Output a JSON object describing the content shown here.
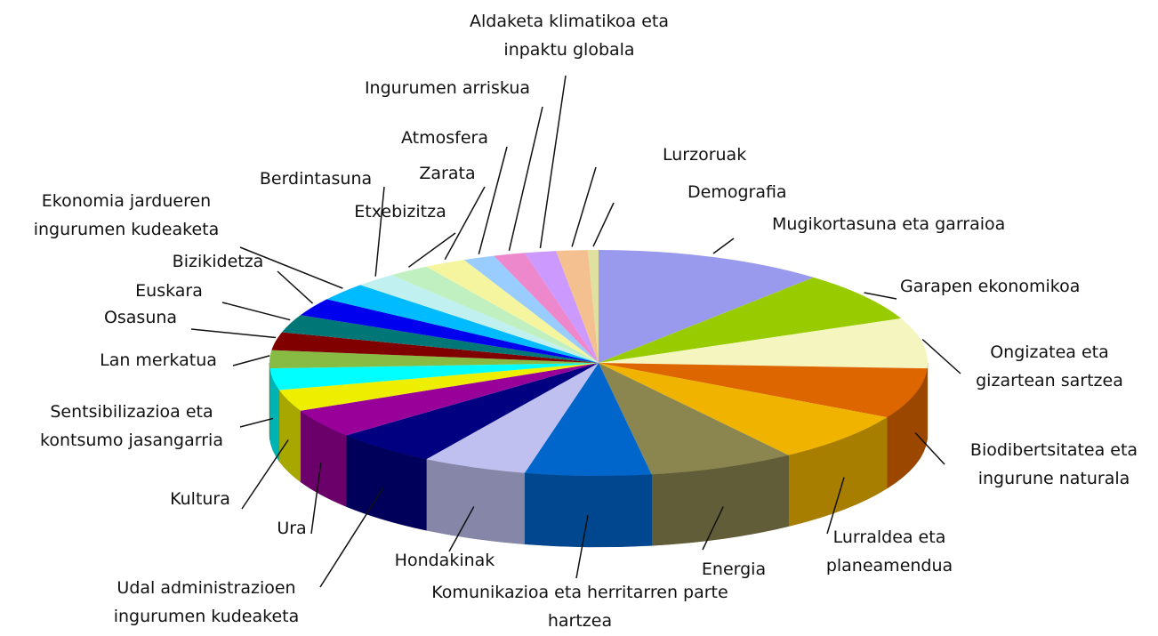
{
  "chart_data": {
    "type": "pie3d",
    "categories": [
      "Mugikortasuna eta garraioa",
      "Garapen ekonomikoa",
      "Ongizatea eta gizartean sartzea",
      "Biodibertsitatea eta ingurune naturala",
      "Lurraldea eta planeamendua",
      "Energia",
      "Komunikazioa eta herritarren parte hartzea",
      "Hondakinak",
      "Udal administrazioen ingurumen kudeaketa",
      "Ura",
      "Kultura",
      "Sentsibilizazioa eta kontsumo jasangarria",
      "Lan merkatua",
      "Osasuna",
      "Euskara",
      "Bizikidetza",
      "Ekonomia jardueren ingurumen kudeaketa",
      "Berdintasuna",
      "Etxebizitza",
      "Zarata",
      "Atmosfera",
      "Ingurumen arriskua",
      "Aldaketa klimatikoa eta inpaktu globala",
      "Lurzoruak",
      "Demografia"
    ],
    "values": [
      11,
      7,
      7,
      7,
      7,
      7,
      6,
      5,
      5,
      4,
      3,
      3,
      2.5,
      2.5,
      2.5,
      2.5,
      2.5,
      2,
      2,
      2,
      1.5,
      1.5,
      1.5,
      1.5,
      0.5
    ],
    "colors": [
      "#9999ee",
      "#99cc00",
      "#f5f5c0",
      "#dd6600",
      "#f0b400",
      "#8b8550",
      "#0066cc",
      "#c0c0f0",
      "#000080",
      "#990099",
      "#eeee00",
      "#00ffff",
      "#88bb44",
      "#800000",
      "#007777",
      "#0000ee",
      "#00bbff",
      "#c0f0f0",
      "#c0f0c0",
      "#f5f5a0",
      "#99ccff",
      "#ee88cc",
      "#cc99ff",
      "#f5c090",
      "#e0e0a0"
    ]
  }
}
